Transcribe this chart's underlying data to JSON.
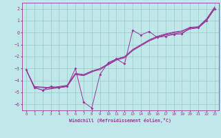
{
  "bg_color": "#c0e8e8",
  "grid_color": "#98c8c8",
  "line_color": "#993399",
  "xlim": [
    -0.5,
    23.5
  ],
  "ylim": [
    -6.5,
    2.5
  ],
  "xticks": [
    0,
    1,
    2,
    3,
    4,
    5,
    6,
    7,
    8,
    9,
    10,
    11,
    12,
    13,
    14,
    15,
    16,
    17,
    18,
    19,
    20,
    21,
    22,
    23
  ],
  "yticks": [
    -6,
    -5,
    -4,
    -3,
    -2,
    -1,
    0,
    1,
    2
  ],
  "xlabel": "Windchill (Refroidissement éolien,°C)",
  "series1": {
    "x": [
      0,
      1,
      2,
      3,
      4,
      5,
      6,
      7,
      8,
      9,
      10,
      11,
      12,
      13,
      14,
      15,
      16,
      17,
      18,
      19,
      20,
      21,
      22,
      23
    ],
    "y": [
      -3.1,
      -4.6,
      -4.8,
      -4.5,
      -4.6,
      -4.5,
      -3.0,
      -5.8,
      -6.3,
      -3.5,
      -2.5,
      -2.2,
      -2.6,
      0.2,
      -0.2,
      0.1,
      -0.4,
      -0.3,
      -0.15,
      -0.1,
      0.4,
      0.4,
      1.0,
      2.0
    ],
    "marker": "D",
    "markersize": 2.0
  },
  "series2": {
    "x": [
      0,
      1,
      2,
      3,
      4,
      5,
      6,
      7,
      8,
      9,
      10,
      11,
      12,
      13,
      14,
      15,
      16,
      17,
      18,
      19,
      20,
      21,
      22,
      23
    ],
    "y": [
      -3.1,
      -4.6,
      -4.8,
      -4.7,
      -4.6,
      -4.5,
      -3.5,
      -3.6,
      -3.3,
      -3.0,
      -2.7,
      -2.3,
      -2.1,
      -1.5,
      -1.1,
      -0.7,
      -0.4,
      -0.2,
      -0.1,
      0.0,
      0.3,
      0.4,
      1.0,
      2.0
    ]
  },
  "series3": {
    "x": [
      0,
      1,
      2,
      3,
      4,
      5,
      6,
      7,
      8,
      9,
      10,
      11,
      12,
      13,
      14,
      15,
      16,
      17,
      18,
      19,
      20,
      21,
      22,
      23
    ],
    "y": [
      -3.1,
      -4.55,
      -4.6,
      -4.65,
      -4.55,
      -4.45,
      -3.45,
      -3.55,
      -3.25,
      -3.1,
      -2.65,
      -2.25,
      -2.05,
      -1.45,
      -1.05,
      -0.65,
      -0.35,
      -0.15,
      0.0,
      0.1,
      0.4,
      0.45,
      1.1,
      2.1
    ]
  },
  "series4": {
    "x": [
      0,
      1,
      2,
      3,
      4,
      5,
      6,
      7,
      8,
      9,
      10,
      11,
      12,
      13,
      14,
      15,
      16,
      17,
      18,
      19,
      20,
      21,
      22,
      23
    ],
    "y": [
      -3.1,
      -4.5,
      -4.55,
      -4.6,
      -4.5,
      -4.4,
      -3.4,
      -3.5,
      -3.2,
      -3.0,
      -2.6,
      -2.2,
      -2.0,
      -1.4,
      -1.0,
      -0.6,
      -0.3,
      -0.1,
      0.05,
      0.15,
      0.45,
      0.5,
      1.15,
      2.15
    ]
  }
}
